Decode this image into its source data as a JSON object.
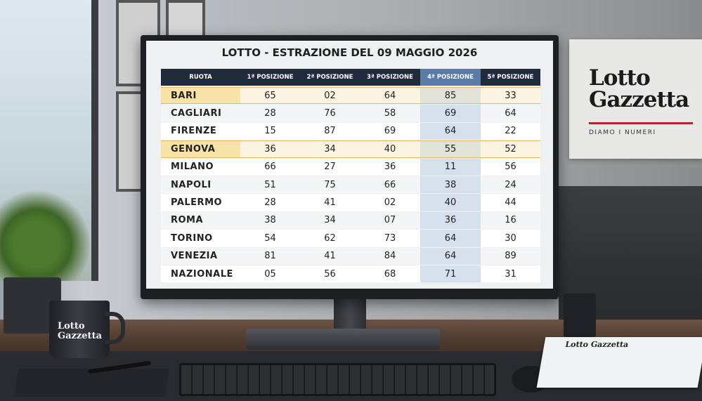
{
  "title": "LOTTO - ESTRAZIONE DEL 09 MAGGIO 2026",
  "table": {
    "header": [
      "RUOTA",
      "1ª POSIZIONE",
      "2ª POSIZIONE",
      "3ª POSIZIONE",
      "4ª POSIZIONE",
      "5ª POSIZIONE"
    ],
    "rows": [
      [
        "BARI",
        "65",
        "02",
        "64",
        "85",
        "33"
      ],
      [
        "CAGLIARI",
        "28",
        "76",
        "58",
        "69",
        "64"
      ],
      [
        "FIRENZE",
        "15",
        "87",
        "69",
        "64",
        "22"
      ],
      [
        "GENOVA",
        "36",
        "34",
        "40",
        "55",
        "52"
      ],
      [
        "MILANO",
        "66",
        "27",
        "36",
        "11",
        "56"
      ],
      [
        "NAPOLI",
        "51",
        "75",
        "66",
        "38",
        "24"
      ],
      [
        "PALERMO",
        "28",
        "41",
        "02",
        "40",
        "44"
      ],
      [
        "ROMA",
        "38",
        "34",
        "07",
        "36",
        "16"
      ],
      [
        "TORINO",
        "54",
        "62",
        "73",
        "64",
        "30"
      ],
      [
        "VENEZIA",
        "81",
        "41",
        "84",
        "64",
        "89"
      ],
      [
        "NAZIONALE",
        "05",
        "56",
        "68",
        "71",
        "31"
      ]
    ],
    "highlight_rows": [
      0,
      3
    ],
    "highlight_column": 4
  },
  "sign": {
    "name": "Lotto\nGazzetta",
    "tagline": "DIAMO I NUMERI"
  },
  "mug": {
    "name": "Lotto\nGazzetta"
  },
  "newspaper": {
    "name": "Lotto Gazzetta"
  }
}
